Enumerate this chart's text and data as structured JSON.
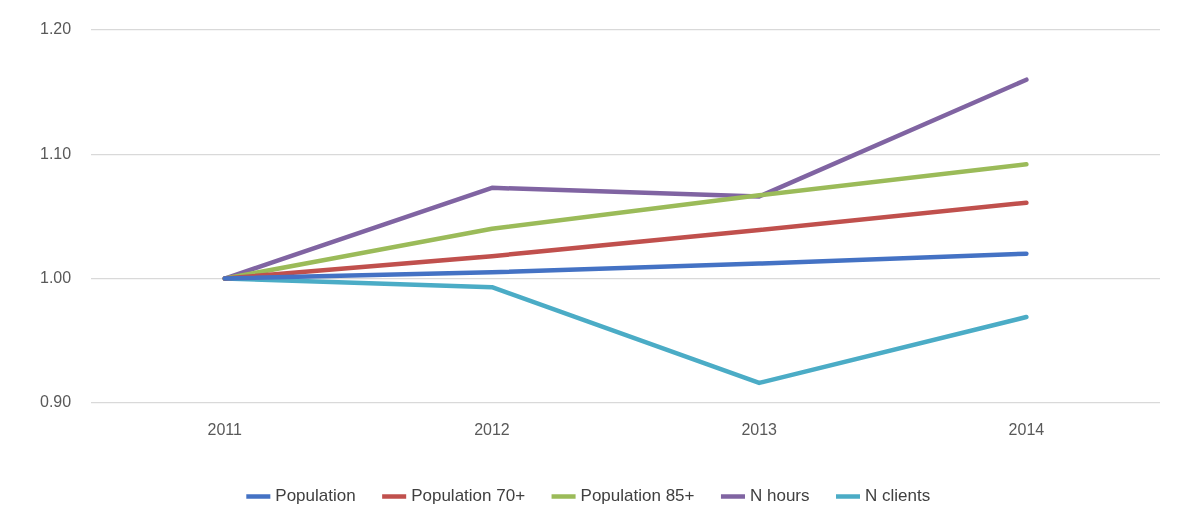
{
  "chart_data": {
    "type": "line",
    "categories": [
      "2011",
      "2012",
      "2013",
      "2014"
    ],
    "series": [
      {
        "name": "Population",
        "color": "#4472c4",
        "values": [
          1.0,
          1.005,
          1.012,
          1.02
        ]
      },
      {
        "name": "Population 70+",
        "color": "#c0504d",
        "values": [
          1.0,
          1.018,
          1.039,
          1.061
        ]
      },
      {
        "name": "Population 85+",
        "color": "#9bbb59",
        "values": [
          1.0,
          1.04,
          1.067,
          1.092
        ]
      },
      {
        "name": "N hours",
        "color": "#8064a2",
        "values": [
          1.0,
          1.073,
          1.066,
          1.16
        ]
      },
      {
        "name": "N clients",
        "color": "#4bacc6",
        "values": [
          1.0,
          0.993,
          0.916,
          0.969
        ]
      }
    ],
    "ylim": [
      0.9,
      1.2
    ],
    "yticks": [
      {
        "value": 0.9,
        "label": "0.90"
      },
      {
        "value": 1.0,
        "label": "1.00"
      },
      {
        "value": 1.1,
        "label": "1.10"
      },
      {
        "value": 1.2,
        "label": "1.20"
      }
    ],
    "grid": "y",
    "legend": "bottom",
    "marker": "none",
    "line_style": "solid"
  }
}
